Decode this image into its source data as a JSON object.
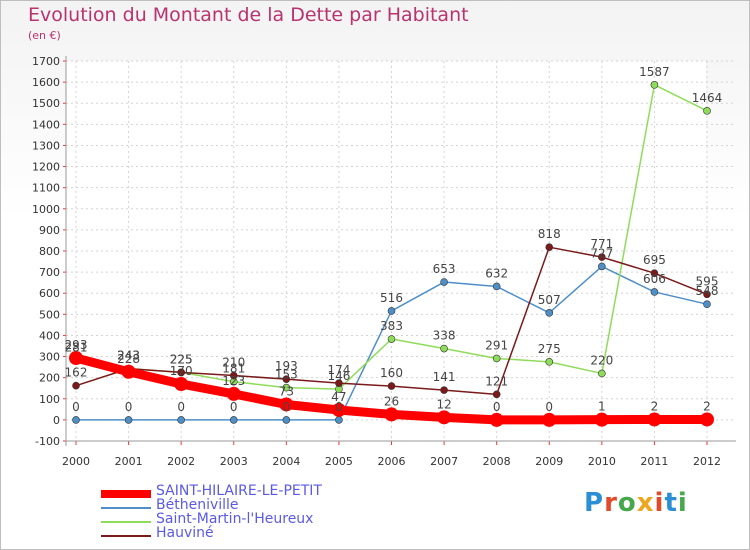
{
  "title": "Evolution du Montant de la Dette par Habitant",
  "unit_label": "(en €)",
  "logo": {
    "text": "Proxiti",
    "colors": [
      "#2b8fd6",
      "#e14a2b",
      "#46a84a",
      "#f0a51f",
      "#e14a2b",
      "#2b8fd6",
      "#46a84a"
    ]
  },
  "chart_data": {
    "type": "line",
    "title": "Evolution du Montant de la Dette par Habitant",
    "ylabel": "(en €)",
    "xlabel": "",
    "x": [
      "2000",
      "2001",
      "2002",
      "2003",
      "2004",
      "2005",
      "2006",
      "2007",
      "2008",
      "2009",
      "2010",
      "2011",
      "2012"
    ],
    "ylim": [
      -100,
      1700
    ],
    "yticks": [
      -100,
      0,
      100,
      200,
      300,
      400,
      500,
      600,
      700,
      800,
      900,
      1000,
      1100,
      1200,
      1300,
      1400,
      1500,
      1600,
      1700
    ],
    "grid": true,
    "legend_position": "bottom-left",
    "series": [
      {
        "name": "SAINT-HILAIRE-LE-PETIT",
        "color": "#ff0000",
        "emphasis": true,
        "values": [
          293,
          228,
          170,
          123,
          73,
          47,
          26,
          12,
          0,
          0,
          1,
          2,
          2
        ],
        "labels": [
          "293",
          "228",
          "170",
          "123",
          "73",
          "47",
          "26",
          "12",
          "0",
          "0",
          "1",
          "2",
          "2"
        ]
      },
      {
        "name": "Bétheniville",
        "color": "#4f8fc8",
        "values": [
          0,
          0,
          0,
          0,
          0,
          0,
          516,
          653,
          632,
          507,
          727,
          606,
          548
        ],
        "labels": [
          "0",
          "0",
          "0",
          "0",
          "0",
          "0",
          "516",
          "653",
          "632",
          "507",
          "727",
          "606",
          "548"
        ]
      },
      {
        "name": "Saint-Martin-l'Heureux",
        "color": "#8fdc5a",
        "values": [
          281,
          243,
          225,
          181,
          153,
          146,
          383,
          338,
          291,
          275,
          220,
          1587,
          1464
        ],
        "labels": [
          "281",
          "243",
          "225",
          "181",
          "153",
          "146",
          "383",
          "338",
          "291",
          "275",
          "220",
          "1587",
          "1464"
        ]
      },
      {
        "name": "Hauviné",
        "color": "#7a1a1a",
        "values": [
          162,
          243,
          225,
          210,
          193,
          174,
          160,
          141,
          121,
          818,
          771,
          695,
          595
        ],
        "labels": [
          "162",
          "243",
          "225",
          "210",
          "193",
          "174",
          "160",
          "141",
          "121",
          "818",
          "771",
          "695",
          "595"
        ]
      }
    ]
  }
}
